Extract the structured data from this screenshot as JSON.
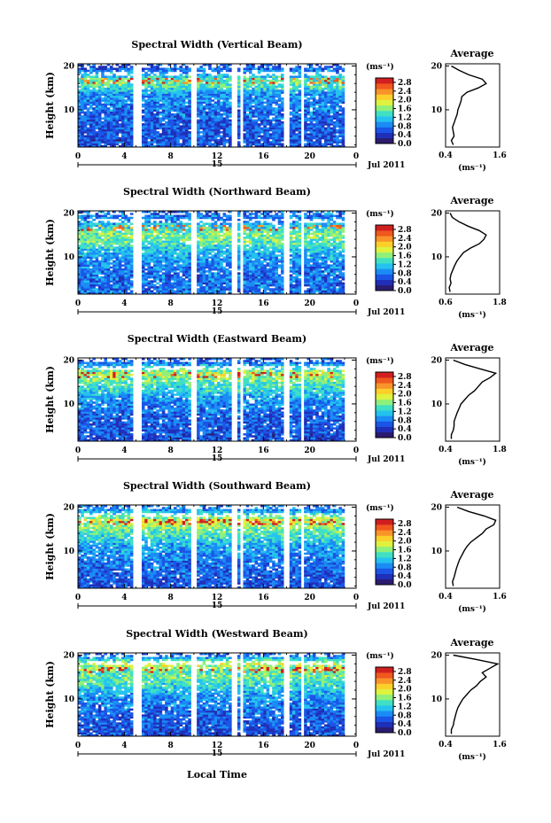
{
  "figure": {
    "xlabel": "Local Time",
    "ylabel": "Height (km)",
    "date_label": "Jul 2011",
    "date_day": "15",
    "unit_label": "(ms⁻¹)"
  },
  "colors": {
    "colormap": [
      "#2b1b6e",
      "#1f2fb8",
      "#1a55e6",
      "#1b8cf5",
      "#24c3ef",
      "#3fe0c4",
      "#8ff07a",
      "#dff23f",
      "#fbd02a",
      "#f9942a",
      "#f0581e",
      "#d11f1f"
    ],
    "missing": "#ffffff",
    "axis": "#000000"
  },
  "chart_data": [
    {
      "type": "heatmap",
      "title": "Spectral Width (Vertical Beam)",
      "xlabel": "Local Time",
      "ylabel": "Height (km)",
      "x_ticks": [
        "0",
        "4",
        "8",
        "12",
        "16",
        "20",
        "0"
      ],
      "x_range": [
        0,
        24
      ],
      "y_ticks": [
        "20",
        "10"
      ],
      "y_range": [
        1.5,
        20.5
      ],
      "colorbar": {
        "label": "(ms⁻¹)",
        "ticks": [
          "0.0",
          "0.4",
          "0.8",
          "1.2",
          "1.6",
          "2.0",
          "2.4",
          "2.8"
        ],
        "range": [
          0,
          3.0
        ]
      },
      "data_gaps_hours": [
        [
          4.7,
          5.6
        ],
        [
          9.7,
          10.2
        ],
        [
          13.2,
          13.7
        ],
        [
          14.0,
          14.3
        ],
        [
          17.8,
          18.2
        ],
        [
          19.3,
          19.6
        ],
        [
          22.9,
          24.0
        ]
      ],
      "average_profile": {
        "title": "Average",
        "xlabel": "(ms⁻¹)",
        "x_ticks": [
          "0.4",
          "1.6"
        ],
        "x_range": [
          0.4,
          1.8
        ],
        "y_ticks": [
          "20",
          "10"
        ],
        "heights_km": [
          2,
          3,
          4,
          5,
          6,
          7,
          8,
          9,
          10,
          11,
          12,
          13,
          14,
          15,
          16,
          17,
          18,
          19,
          20
        ],
        "values": [
          0.6,
          0.55,
          0.62,
          0.6,
          0.58,
          0.62,
          0.66,
          0.7,
          0.72,
          0.76,
          0.8,
          0.82,
          0.95,
          1.25,
          1.45,
          1.35,
          1.0,
          0.75,
          0.55
        ]
      }
    },
    {
      "type": "heatmap",
      "title": "Spectral Width (Northward Beam)",
      "xlabel": "Local Time",
      "ylabel": "Height (km)",
      "x_ticks": [
        "0",
        "4",
        "8",
        "12",
        "16",
        "20",
        "0"
      ],
      "x_range": [
        0,
        24
      ],
      "y_ticks": [
        "20",
        "10"
      ],
      "y_range": [
        1.5,
        20.5
      ],
      "colorbar": {
        "label": "(ms⁻¹)",
        "ticks": [
          "0.0",
          "0.4",
          "0.8",
          "1.2",
          "1.6",
          "2.0",
          "2.4",
          "2.8"
        ],
        "range": [
          0,
          3.0
        ]
      },
      "data_gaps_hours": [
        [
          4.7,
          5.6
        ],
        [
          9.7,
          10.2
        ],
        [
          13.2,
          13.7
        ],
        [
          14.0,
          14.3
        ],
        [
          17.8,
          18.2
        ],
        [
          19.3,
          19.6
        ],
        [
          22.9,
          24.0
        ]
      ],
      "average_profile": {
        "title": "Average",
        "xlabel": "(ms⁻¹)",
        "x_ticks": [
          "0.6",
          "1.8"
        ],
        "x_range": [
          0.6,
          1.8
        ],
        "y_ticks": [
          "20",
          "10"
        ],
        "heights_km": [
          2,
          3,
          4,
          5,
          6,
          7,
          8,
          9,
          10,
          11,
          12,
          13,
          14,
          15,
          16,
          17,
          18,
          19,
          20
        ],
        "values": [
          0.7,
          0.68,
          0.72,
          0.7,
          0.72,
          0.76,
          0.8,
          0.85,
          0.92,
          1.0,
          1.15,
          1.35,
          1.45,
          1.5,
          1.35,
          1.1,
          0.9,
          0.75,
          0.7
        ]
      }
    },
    {
      "type": "heatmap",
      "title": "Spectral Width (Eastward Beam)",
      "xlabel": "Local Time",
      "ylabel": "Height (km)",
      "x_ticks": [
        "0",
        "4",
        "8",
        "12",
        "16",
        "20",
        "0"
      ],
      "x_range": [
        0,
        24
      ],
      "y_ticks": [
        "20",
        "10"
      ],
      "y_range": [
        1.5,
        20.5
      ],
      "colorbar": {
        "label": "(ms⁻¹)",
        "ticks": [
          "0.0",
          "0.4",
          "0.8",
          "1.2",
          "1.6",
          "2.0",
          "2.4",
          "2.8"
        ],
        "range": [
          0,
          3.0
        ]
      },
      "data_gaps_hours": [
        [
          4.7,
          5.6
        ],
        [
          9.7,
          10.2
        ],
        [
          13.2,
          13.7
        ],
        [
          14.0,
          14.3
        ],
        [
          17.8,
          18.2
        ],
        [
          19.3,
          19.6
        ],
        [
          22.9,
          24.0
        ]
      ],
      "average_profile": {
        "title": "Average",
        "xlabel": "(ms⁻¹)",
        "x_ticks": [
          "0.4",
          "1.8"
        ],
        "x_range": [
          0.4,
          1.8
        ],
        "y_ticks": [
          "20",
          "10"
        ],
        "heights_km": [
          2,
          3,
          4,
          5,
          6,
          7,
          8,
          9,
          10,
          11,
          12,
          13,
          14,
          15,
          16,
          17,
          18,
          19,
          20
        ],
        "values": [
          0.55,
          0.55,
          0.6,
          0.62,
          0.62,
          0.66,
          0.7,
          0.75,
          0.8,
          0.9,
          1.0,
          1.15,
          1.25,
          1.35,
          1.55,
          1.7,
          1.3,
          0.9,
          0.6
        ]
      }
    },
    {
      "type": "heatmap",
      "title": "Spectral Width (Southward Beam)",
      "xlabel": "Local Time",
      "ylabel": "Height (km)",
      "x_ticks": [
        "0",
        "4",
        "8",
        "12",
        "16",
        "20",
        "0"
      ],
      "x_range": [
        0,
        24
      ],
      "y_ticks": [
        "20",
        "10"
      ],
      "y_range": [
        1.5,
        20.5
      ],
      "colorbar": {
        "label": "(ms⁻¹)",
        "ticks": [
          "0.0",
          "0.4",
          "0.8",
          "1.2",
          "1.6",
          "2.0",
          "2.4",
          "2.8"
        ],
        "range": [
          0,
          3.0
        ]
      },
      "data_gaps_hours": [
        [
          4.7,
          5.6
        ],
        [
          9.7,
          10.2
        ],
        [
          13.2,
          13.7
        ],
        [
          14.0,
          14.3
        ],
        [
          17.8,
          18.2
        ],
        [
          19.3,
          19.6
        ],
        [
          22.9,
          24.0
        ]
      ],
      "average_profile": {
        "title": "Average",
        "xlabel": "(ms⁻¹)",
        "x_ticks": [
          "0.4",
          "1.6"
        ],
        "x_range": [
          0.4,
          1.8
        ],
        "y_ticks": [
          "20",
          "10"
        ],
        "heights_km": [
          2,
          3,
          4,
          5,
          6,
          7,
          8,
          9,
          10,
          11,
          12,
          13,
          14,
          15,
          16,
          17,
          18,
          19,
          20
        ],
        "values": [
          0.6,
          0.58,
          0.62,
          0.65,
          0.68,
          0.72,
          0.76,
          0.82,
          0.88,
          0.95,
          1.05,
          1.2,
          1.35,
          1.45,
          1.65,
          1.7,
          1.4,
          1.0,
          0.7
        ]
      }
    },
    {
      "type": "heatmap",
      "title": "Spectral Width (Westward Beam)",
      "xlabel": "Local Time",
      "ylabel": "Height (km)",
      "x_ticks": [
        "0",
        "4",
        "8",
        "12",
        "16",
        "20",
        "0"
      ],
      "x_range": [
        0,
        24
      ],
      "y_ticks": [
        "20",
        "10"
      ],
      "y_range": [
        1.5,
        20.5
      ],
      "colorbar": {
        "label": "(ms⁻¹)",
        "ticks": [
          "0.0",
          "0.4",
          "0.8",
          "1.2",
          "1.6",
          "2.0",
          "2.4",
          "2.8"
        ],
        "range": [
          0,
          3.0
        ]
      },
      "data_gaps_hours": [
        [
          4.7,
          5.6
        ],
        [
          9.7,
          10.2
        ],
        [
          13.2,
          13.7
        ],
        [
          14.0,
          14.3
        ],
        [
          17.8,
          18.2
        ],
        [
          19.3,
          19.6
        ],
        [
          22.9,
          24.0
        ]
      ],
      "average_profile": {
        "title": "Average",
        "xlabel": "(ms⁻¹)",
        "x_ticks": [
          "0.4",
          "1.6"
        ],
        "x_range": [
          0.4,
          1.8
        ],
        "y_ticks": [
          "20",
          "10"
        ],
        "heights_km": [
          2,
          3,
          4,
          5,
          6,
          7,
          8,
          9,
          10,
          11,
          12,
          13,
          14,
          15,
          16,
          17,
          18,
          19,
          20
        ],
        "values": [
          0.55,
          0.55,
          0.6,
          0.62,
          0.65,
          0.68,
          0.72,
          0.78,
          0.85,
          0.95,
          1.05,
          1.2,
          1.3,
          1.45,
          1.35,
          1.55,
          1.75,
          1.2,
          0.6
        ]
      }
    }
  ]
}
